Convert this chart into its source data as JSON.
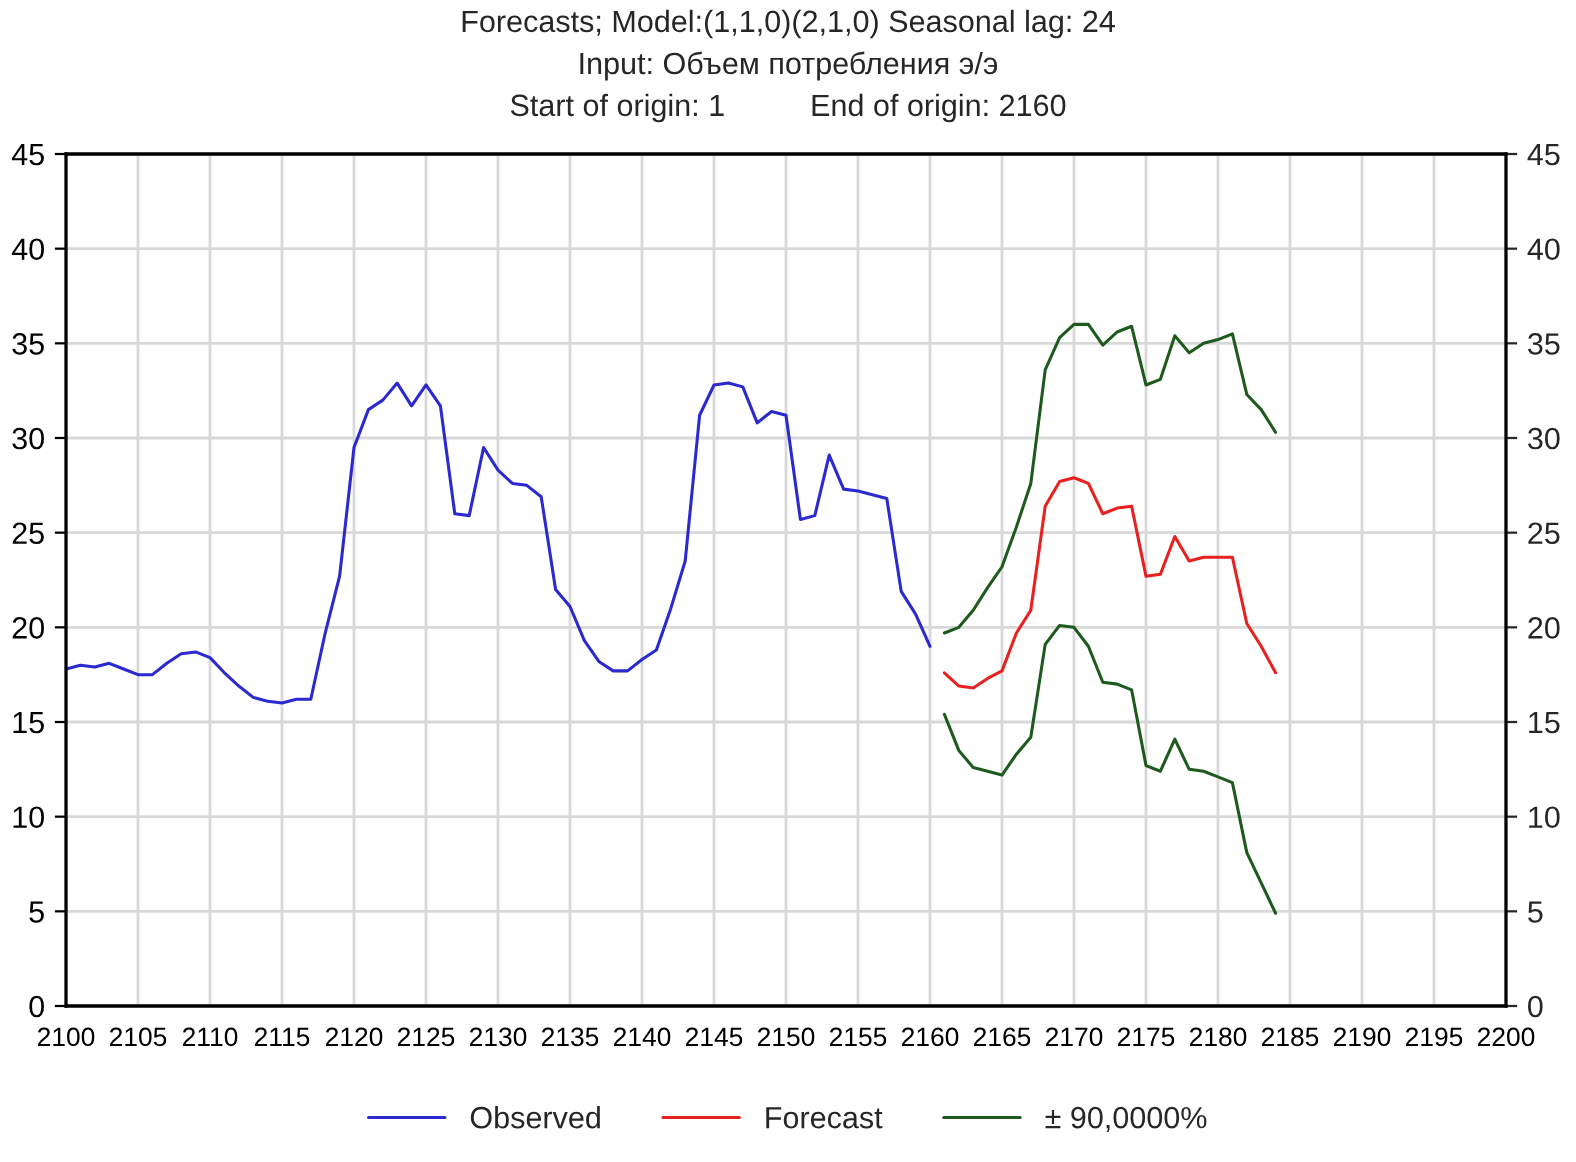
{
  "chart_data": {
    "type": "line",
    "title": "Forecasts; Model:(1,1,0)(2,1,0) Seasonal lag: 24",
    "subtitle": "Input: Объем потребления э/э",
    "annotations": [
      "Start of origin: 1          End of origin: 2160"
    ],
    "xlim": [
      2100,
      2200
    ],
    "xticks": [
      2100,
      2105,
      2110,
      2115,
      2120,
      2125,
      2130,
      2135,
      2140,
      2145,
      2150,
      2155,
      2160,
      2165,
      2170,
      2175,
      2180,
      2185,
      2190,
      2195,
      2200
    ],
    "ylim": [
      0,
      45
    ],
    "yticks": [
      0,
      5,
      10,
      15,
      20,
      25,
      30,
      35,
      40,
      45
    ],
    "y2lim": [
      0,
      45
    ],
    "y2ticks": [
      0,
      5,
      10,
      15,
      20,
      25,
      30,
      35,
      40,
      45
    ],
    "grid": true,
    "legend": "bottom",
    "marker": "none",
    "line_style": "solid",
    "series": [
      {
        "name": "Observed",
        "color": "#2a2ad0",
        "x": [
          2100,
          2101,
          2102,
          2103,
          2104,
          2105,
          2106,
          2107,
          2108,
          2109,
          2110,
          2111,
          2112,
          2113,
          2114,
          2115,
          2116,
          2117,
          2118,
          2119,
          2120,
          2121,
          2122,
          2123,
          2124,
          2125,
          2126,
          2127,
          2128,
          2129,
          2130,
          2131,
          2132,
          2133,
          2134,
          2135,
          2136,
          2137,
          2138,
          2139,
          2140,
          2141,
          2142,
          2143,
          2144,
          2145,
          2146,
          2147,
          2148,
          2149,
          2150,
          2151,
          2152,
          2153,
          2154,
          2155,
          2156,
          2157,
          2158,
          2159,
          2160
        ],
        "values": [
          17.8,
          18.0,
          17.9,
          18.1,
          17.8,
          17.5,
          17.5,
          18.1,
          18.6,
          18.7,
          18.4,
          17.6,
          16.9,
          16.3,
          16.1,
          16.0,
          16.2,
          16.2,
          19.7,
          22.7,
          29.5,
          31.5,
          32.0,
          32.9,
          31.7,
          32.8,
          31.7,
          26.0,
          25.9,
          29.5,
          28.3,
          27.6,
          27.5,
          26.9,
          22.0,
          21.1,
          19.3,
          18.2,
          17.7,
          17.7,
          18.3,
          18.8,
          21.0,
          23.5,
          31.2,
          32.8,
          32.9,
          32.7,
          30.8,
          31.4,
          31.2,
          25.7,
          25.9,
          29.1,
          27.3,
          27.2,
          27.0,
          26.8,
          21.9,
          20.7,
          19.0
        ]
      },
      {
        "name": "Forecast",
        "color": "#e82020",
        "x": [
          2161,
          2162,
          2163,
          2164,
          2165,
          2166,
          2167,
          2168,
          2169,
          2170,
          2171,
          2172,
          2173,
          2174,
          2175,
          2176,
          2177,
          2178,
          2179,
          2180,
          2181,
          2182,
          2183,
          2184
        ],
        "values": [
          17.6,
          16.9,
          16.8,
          17.3,
          17.7,
          19.7,
          20.9,
          26.4,
          27.7,
          27.9,
          27.6,
          26.0,
          26.3,
          26.4,
          22.7,
          22.8,
          24.8,
          23.5,
          23.7,
          23.7,
          23.7,
          20.2,
          19.0,
          17.6
        ]
      },
      {
        "name": "± 90,0000%",
        "color": "#1e5a1e",
        "x": [
          2161,
          2162,
          2163,
          2164,
          2165,
          2166,
          2167,
          2168,
          2169,
          2170,
          2171,
          2172,
          2173,
          2174,
          2175,
          2176,
          2177,
          2178,
          2179,
          2180,
          2181,
          2182,
          2183,
          2184
        ],
        "values": [
          19.7,
          20.0,
          20.9,
          22.1,
          23.2,
          25.3,
          27.6,
          33.6,
          35.3,
          36.0,
          36.0,
          34.9,
          35.6,
          35.9,
          32.8,
          33.1,
          35.4,
          34.5,
          35.0,
          35.2,
          35.5,
          32.3,
          31.5,
          30.3
        ]
      },
      {
        "color": "#1e5a1e",
        "x": [
          2161,
          2162,
          2163,
          2164,
          2165,
          2166,
          2167,
          2168,
          2169,
          2170,
          2171,
          2172,
          2173,
          2174,
          2175,
          2176,
          2177,
          2178,
          2179,
          2180,
          2181,
          2182,
          2183,
          2184
        ],
        "values": [
          15.4,
          13.5,
          12.6,
          12.4,
          12.2,
          13.3,
          14.2,
          19.1,
          20.1,
          20.0,
          19.0,
          17.1,
          17.0,
          16.7,
          12.7,
          12.4,
          14.1,
          12.5,
          12.4,
          12.1,
          11.8,
          8.1,
          6.5,
          4.9
        ]
      }
    ]
  }
}
